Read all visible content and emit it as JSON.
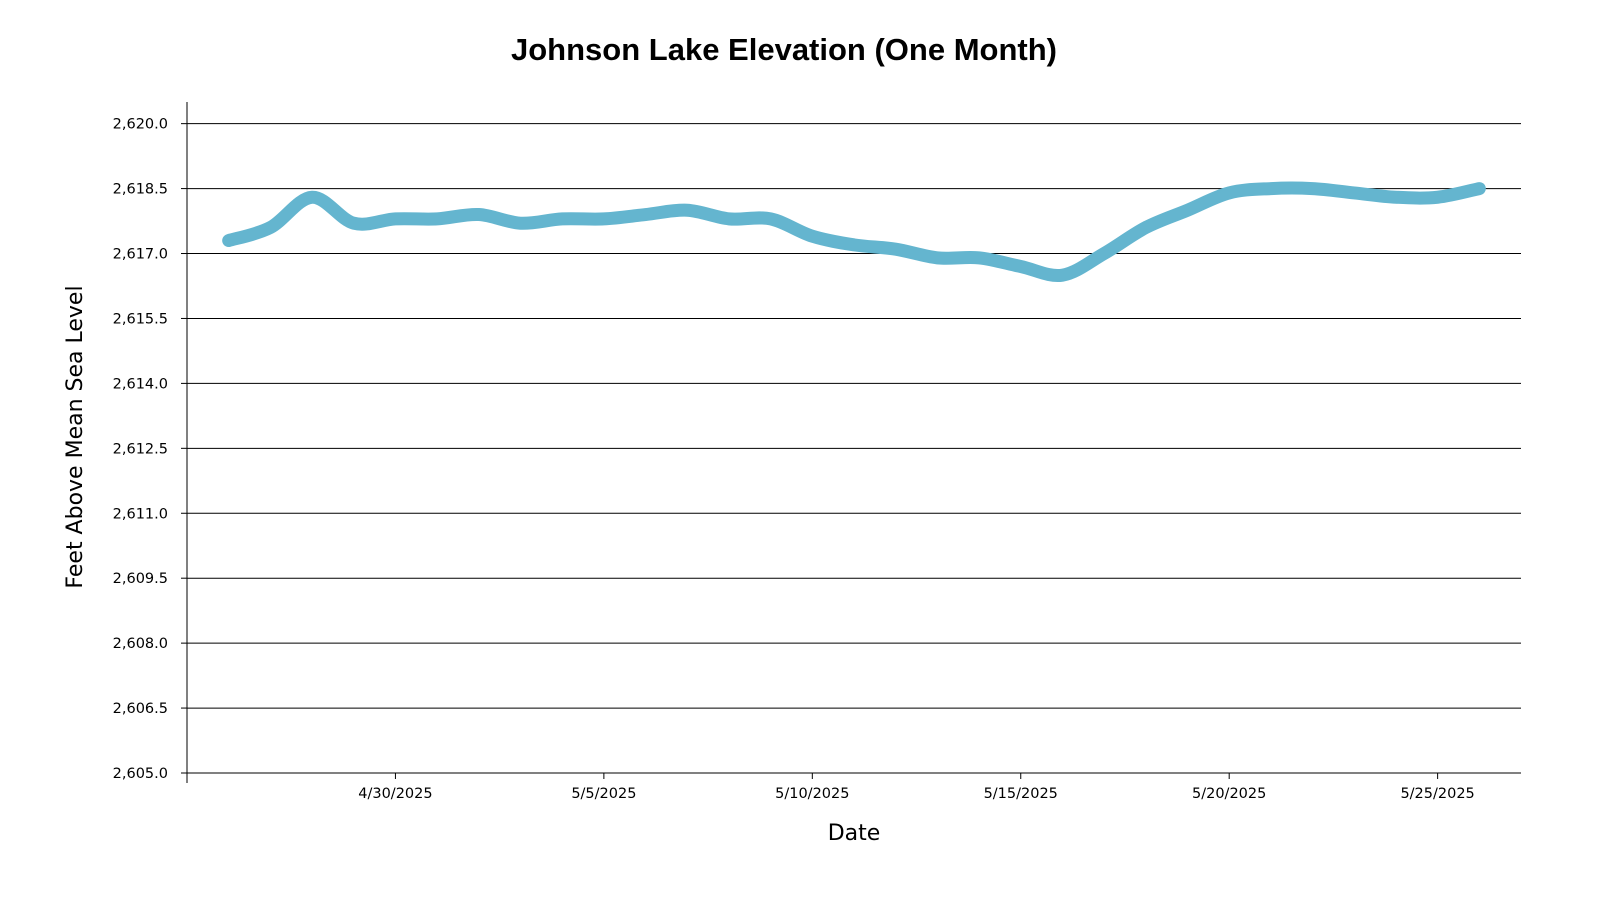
{
  "chart_data": {
    "type": "line",
    "title": "Johnson Lake Elevation (One Month)",
    "xlabel": "Date",
    "ylabel": "Feet Above Mean Sea Level",
    "xlim": [
      "2025-04-25",
      "2025-05-27"
    ],
    "ylim": [
      2605.0,
      2620.5
    ],
    "grid": true,
    "y_ticks": [
      "2,605.0",
      "2,606.5",
      "2,608.0",
      "2,609.5",
      "2,611.0",
      "2,612.5",
      "2,614.0",
      "2,615.5",
      "2,617.0",
      "2,618.5",
      "2,620.0"
    ],
    "y_tick_values": [
      2605.0,
      2606.5,
      2608.0,
      2609.5,
      2611.0,
      2612.5,
      2614.0,
      2615.5,
      2617.0,
      2618.5,
      2620.0
    ],
    "x_ticks": [
      "4/30/2025",
      "5/5/2025",
      "5/10/2025",
      "5/15/2025",
      "5/20/2025",
      "5/25/2025"
    ],
    "x_tick_dates": [
      "2025-04-30",
      "2025-05-05",
      "2025-05-10",
      "2025-05-15",
      "2025-05-20",
      "2025-05-25"
    ],
    "series": [
      {
        "color": "#64b5cf",
        "x": [
          "2025-04-26",
          "2025-04-27",
          "2025-04-28",
          "2025-04-29",
          "2025-04-30",
          "2025-05-01",
          "2025-05-02",
          "2025-05-03",
          "2025-05-04",
          "2025-05-05",
          "2025-05-06",
          "2025-05-07",
          "2025-05-08",
          "2025-05-09",
          "2025-05-10",
          "2025-05-11",
          "2025-05-12",
          "2025-05-13",
          "2025-05-14",
          "2025-05-15",
          "2025-05-16",
          "2025-05-17",
          "2025-05-18",
          "2025-05-19",
          "2025-05-20",
          "2025-05-21",
          "2025-05-22",
          "2025-05-23",
          "2025-05-24",
          "2025-05-25",
          "2025-05-26"
        ],
        "values": [
          2617.3,
          2617.6,
          2618.3,
          2617.7,
          2617.8,
          2617.8,
          2617.9,
          2617.7,
          2617.8,
          2617.8,
          2617.9,
          2618.0,
          2617.8,
          2617.8,
          2617.4,
          2617.2,
          2617.1,
          2616.9,
          2616.9,
          2616.7,
          2616.5,
          2617.0,
          2617.6,
          2618.0,
          2618.4,
          2618.5,
          2618.5,
          2618.4,
          2618.3,
          2618.3,
          2618.5
        ]
      }
    ]
  }
}
